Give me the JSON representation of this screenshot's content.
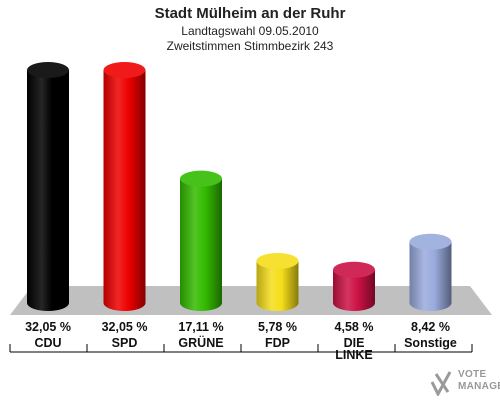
{
  "header": {
    "title": "Stadt Mülheim an der Ruhr",
    "subtitle1": "Landtagswahl 09.05.2010",
    "subtitle2": "Zweitstimmen Stimmbezirk 243"
  },
  "chart_data": {
    "type": "bar",
    "title": "Stadt Mülheim an der Ruhr",
    "categories": [
      "CDU",
      "SPD",
      "GRÜNE",
      "FDP",
      "DIE LINKE",
      "Sonstige"
    ],
    "values": [
      32.05,
      32.05,
      17.11,
      5.78,
      4.58,
      8.42
    ],
    "value_labels": [
      "32,05 %",
      "32,05 %",
      "17,11 %",
      "5,78 %",
      "4,58 %",
      "8,42 %"
    ],
    "colors": [
      "#000000",
      "#ee0000",
      "#33bb00",
      "#f5dd1a",
      "#cc1144",
      "#99aadd"
    ],
    "ylim": [
      0,
      32.05
    ],
    "grid": false,
    "legend": "none"
  },
  "logo": {
    "line1": "VOTE",
    "line2": "MANAGER"
  }
}
